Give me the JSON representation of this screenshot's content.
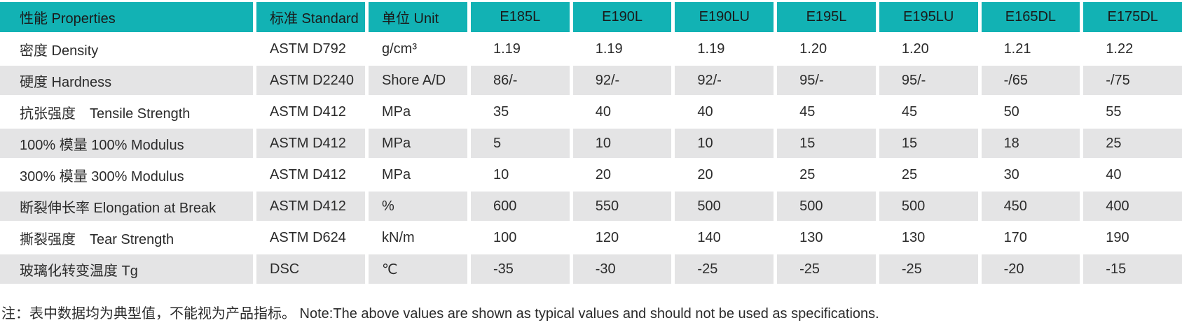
{
  "table": {
    "header": {
      "properties": "性能 Properties",
      "standard": "标准 Standard",
      "unit": "单位 Unit",
      "products": [
        "E185L",
        "E190L",
        "E190LU",
        "E195L",
        "E195LU",
        "E165DL",
        "E175DL"
      ]
    },
    "rows": [
      {
        "label": "密度 Density",
        "standard": "ASTM D792",
        "unit": "g/cm³",
        "values": [
          "1.19",
          "1.19",
          "1.19",
          "1.20",
          "1.20",
          "1.21",
          "1.22"
        ]
      },
      {
        "label": "硬度 Hardness",
        "standard": "ASTM D2240",
        "unit": "Shore A/D",
        "values": [
          "86/-",
          "92/-",
          "92/-",
          "95/-",
          "95/-",
          "-/65",
          "-/75"
        ]
      },
      {
        "label": "抗张强度　Tensile Strength",
        "standard": "ASTM D412",
        "unit": "MPa",
        "values": [
          "35",
          "40",
          "40",
          "45",
          "45",
          "50",
          "55"
        ]
      },
      {
        "label": "100% 模量 100% Modulus",
        "standard": "ASTM D412",
        "unit": "MPa",
        "values": [
          "5",
          "10",
          "10",
          "15",
          "15",
          "18",
          "25"
        ]
      },
      {
        "label": "300% 模量 300% Modulus",
        "standard": "ASTM D412",
        "unit": "MPa",
        "values": [
          "10",
          "20",
          "20",
          "25",
          "25",
          "30",
          "40"
        ]
      },
      {
        "label": "断裂伸长率 Elongation at Break",
        "standard": "ASTM D412",
        "unit": "%",
        "values": [
          "600",
          "550",
          "500",
          "500",
          "500",
          "450",
          "400"
        ]
      },
      {
        "label": "撕裂强度　Tear Strength",
        "standard": "ASTM D624",
        "unit": "kN/m",
        "values": [
          "100",
          "120",
          "140",
          "130",
          "130",
          "170",
          "190"
        ]
      },
      {
        "label": "玻璃化转变温度 Tg",
        "standard": "DSC",
        "unit": "℃",
        "values": [
          "-35",
          "-30",
          "-25",
          "-25",
          "-25",
          "-20",
          "-15"
        ]
      }
    ]
  },
  "note": "注：表中数据均为典型值，不能视为产品指标。 Note:The above values are shown as typical values and should not be used as specifications.",
  "colors": {
    "header_bg": "#12b2b4",
    "alt_row_bg": "#e4e4e5",
    "text": "#2b2b2b"
  }
}
